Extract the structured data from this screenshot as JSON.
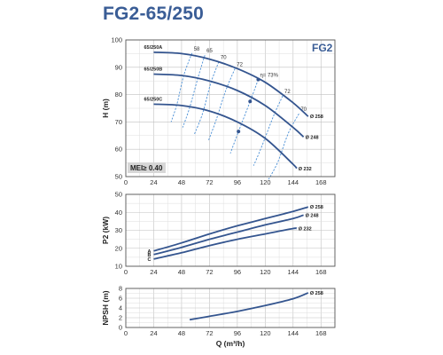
{
  "title": "FG2-65/250",
  "panel_label": "FG2",
  "mei_label": "MEI≥ 0.40",
  "colors": {
    "curve": "#34558f",
    "efficiency": "#4a8fd6",
    "grid": "#c0c0c0",
    "title": "#3a5d96",
    "box_bg": "#d7d7d7"
  },
  "chart_data": [
    {
      "type": "line",
      "ylabel": "H (m)",
      "xlim": [
        0,
        180
      ],
      "ylim": [
        50,
        100
      ],
      "xticks": [
        "0",
        "24",
        "48",
        "72",
        "96",
        "120",
        "144",
        "168"
      ],
      "yticks": [
        "50",
        "60",
        "70",
        "80",
        "90",
        "100"
      ],
      "series": [
        {
          "name": "65/250A",
          "diameter": "Ø 258",
          "x": [
            24,
            48,
            72,
            96,
            120,
            144,
            157
          ],
          "y": [
            95.5,
            95,
            93,
            89.5,
            84.5,
            77,
            72
          ]
        },
        {
          "name": "65/250B",
          "diameter": "Ø 248",
          "x": [
            24,
            48,
            72,
            96,
            120,
            144,
            153
          ],
          "y": [
            87.5,
            87,
            85,
            81.5,
            76,
            68,
            64.5
          ]
        },
        {
          "name": "65/250C",
          "diameter": "Ø 232",
          "x": [
            24,
            48,
            72,
            96,
            120,
            144,
            147
          ],
          "y": [
            76.5,
            76,
            74,
            70,
            64,
            54.5,
            53
          ]
        }
      ],
      "efficiency_curves": [
        {
          "label": "58",
          "x": [
            57,
            50,
            44,
            39
          ],
          "y": [
            95.2,
            87.2,
            76.5,
            70
          ]
        },
        {
          "label": "65",
          "x": [
            68,
            62,
            55,
            49
          ],
          "y": [
            94.4,
            86,
            75.3,
            68
          ]
        },
        {
          "label": "70",
          "x": [
            80,
            73,
            66,
            59
          ],
          "y": [
            92,
            84,
            73,
            65.5
          ]
        },
        {
          "label": "72",
          "x": [
            94,
            86,
            78,
            71
          ],
          "y": [
            89.5,
            81.5,
            71,
            63
          ]
        },
        {
          "label": "η= 73%",
          "x": [
            114,
            107,
            97,
            90
          ],
          "y": [
            85.5,
            77.5,
            66.5,
            58.5
          ]
        },
        {
          "label": "72",
          "x": [
            135,
            127,
            117,
            110
          ],
          "y": [
            79.5,
            72,
            61,
            54
          ]
        },
        {
          "label": "70",
          "x": [
            149,
            140,
            131,
            123
          ],
          "y": [
            73,
            66,
            55.5,
            49
          ]
        }
      ],
      "bep_points": [
        {
          "x": 114,
          "y": 85.5
        },
        {
          "x": 107,
          "y": 77.5
        },
        {
          "x": 97,
          "y": 66.5
        }
      ]
    },
    {
      "type": "line",
      "ylabel": "P2 (kW)",
      "xlim": [
        0,
        180
      ],
      "ylim": [
        10,
        50
      ],
      "xticks": [
        "0",
        "24",
        "48",
        "72",
        "96",
        "120",
        "144",
        "168"
      ],
      "yticks": [
        "10",
        "20",
        "30",
        "40",
        "50"
      ],
      "series": [
        {
          "name": "A",
          "diameter": "Ø 258",
          "x": [
            24,
            48,
            72,
            96,
            120,
            144,
            157
          ],
          "y": [
            18.5,
            23,
            28,
            32.5,
            36.5,
            40.5,
            43
          ]
        },
        {
          "name": "B",
          "diameter": "Ø 248",
          "x": [
            24,
            48,
            72,
            96,
            120,
            144,
            153
          ],
          "y": [
            16.5,
            20.5,
            25,
            29,
            33,
            36.5,
            38.5
          ]
        },
        {
          "name": "C",
          "diameter": "Ø 232",
          "x": [
            24,
            48,
            72,
            96,
            120,
            144,
            147
          ],
          "y": [
            14,
            17.5,
            21.5,
            25,
            28,
            31,
            31
          ]
        }
      ]
    },
    {
      "type": "line",
      "xlabel": "Q (m³/h)",
      "ylabel": "NPSH (m)",
      "xlim": [
        0,
        180
      ],
      "ylim": [
        0,
        8
      ],
      "xticks": [
        "0",
        "24",
        "48",
        "72",
        "96",
        "120",
        "144",
        "168"
      ],
      "yticks": [
        "0",
        "2",
        "4",
        "6",
        "8"
      ],
      "series": [
        {
          "name": "",
          "diameter": "Ø 258",
          "x": [
            55,
            72,
            96,
            120,
            144,
            157
          ],
          "y": [
            1.6,
            2.3,
            3.3,
            4.5,
            5.9,
            7.1
          ]
        }
      ]
    }
  ]
}
